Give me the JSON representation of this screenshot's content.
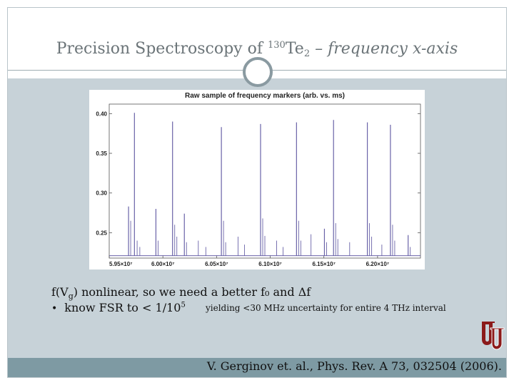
{
  "slide": {
    "title_main": "Precision Spectroscopy of ",
    "title_sup": "130",
    "title_element": "Te",
    "title_sub": "2",
    "title_rest": " – frequency x-axis",
    "caption_prefix": "f(V",
    "caption_sub": "g",
    "caption_suffix": ") nonlinear, so we need a better f₀ and Δf",
    "bullet_glyph": "•",
    "bullet_text": "know FSR to < 1/10",
    "bullet_sup": "5",
    "side_note": "yielding <30 MHz uncertainty for entire 4 THz interval",
    "citation": "V. Gerginov et. al., Phys. Rev. A 73, 032504 (2006).",
    "logo_text": "OU",
    "colors": {
      "content_bg": "#c7d2d8",
      "footer_bg": "#7e9aa3",
      "plot_line": "#6a63a8",
      "logo_red": "#8b1a1a"
    }
  },
  "chart_data": {
    "type": "line",
    "title": "Raw sample of frequency markers (arb. vs. ms)",
    "xlabel": "",
    "ylabel": "",
    "xlim": [
      59500000.0,
      62400000.0
    ],
    "ylim": [
      0.218,
      0.412
    ],
    "x_ticks": [
      59500000.0,
      60000000.0,
      60500000.0,
      61000000.0,
      61500000.0,
      62000000.0
    ],
    "x_tick_labels": [
      "5.95×10⁷",
      "6.00×10⁷",
      "6.05×10⁷",
      "6.10×10⁷",
      "6.15×10⁷",
      "6.20×10⁷"
    ],
    "y_ticks": [
      0.25,
      0.3,
      0.35,
      0.4
    ],
    "y_tick_labels": [
      "0.25",
      "0.30",
      "0.35",
      "0.40"
    ],
    "baseline": 0.221,
    "series": [
      {
        "peaks": [
          {
            "x": 59680000,
            "y": 0.283
          },
          {
            "x": 59735000,
            "y": 0.401
          },
          {
            "x": 59935000,
            "y": 0.28
          },
          {
            "x": 60090000,
            "y": 0.39
          },
          {
            "x": 60200000,
            "y": 0.274
          },
          {
            "x": 60545000,
            "y": 0.383
          },
          {
            "x": 60910000,
            "y": 0.387
          },
          {
            "x": 61245000,
            "y": 0.389
          },
          {
            "x": 61505000,
            "y": 0.255
          },
          {
            "x": 61590000,
            "y": 0.392
          },
          {
            "x": 61905000,
            "y": 0.389
          },
          {
            "x": 62120000,
            "y": 0.386
          },
          {
            "x": 62285000,
            "y": 0.247
          }
        ],
        "minor_peaks": [
          {
            "x": 59700000,
            "y": 0.265
          },
          {
            "x": 59760000,
            "y": 0.24
          },
          {
            "x": 59785000,
            "y": 0.232
          },
          {
            "x": 59955000,
            "y": 0.24
          },
          {
            "x": 60110000,
            "y": 0.26
          },
          {
            "x": 60130000,
            "y": 0.245
          },
          {
            "x": 60220000,
            "y": 0.238
          },
          {
            "x": 60330000,
            "y": 0.24
          },
          {
            "x": 60400000,
            "y": 0.232
          },
          {
            "x": 60565000,
            "y": 0.265
          },
          {
            "x": 60585000,
            "y": 0.238
          },
          {
            "x": 60700000,
            "y": 0.245
          },
          {
            "x": 60760000,
            "y": 0.235
          },
          {
            "x": 60930000,
            "y": 0.268
          },
          {
            "x": 60950000,
            "y": 0.246
          },
          {
            "x": 61060000,
            "y": 0.24
          },
          {
            "x": 61120000,
            "y": 0.232
          },
          {
            "x": 61265000,
            "y": 0.265
          },
          {
            "x": 61285000,
            "y": 0.24
          },
          {
            "x": 61380000,
            "y": 0.248
          },
          {
            "x": 61525000,
            "y": 0.238
          },
          {
            "x": 61610000,
            "y": 0.262
          },
          {
            "x": 61630000,
            "y": 0.242
          },
          {
            "x": 61740000,
            "y": 0.238
          },
          {
            "x": 61925000,
            "y": 0.262
          },
          {
            "x": 61945000,
            "y": 0.245
          },
          {
            "x": 62040000,
            "y": 0.235
          },
          {
            "x": 62140000,
            "y": 0.26
          },
          {
            "x": 62160000,
            "y": 0.24
          },
          {
            "x": 62305000,
            "y": 0.232
          }
        ]
      }
    ],
    "grid": false
  }
}
